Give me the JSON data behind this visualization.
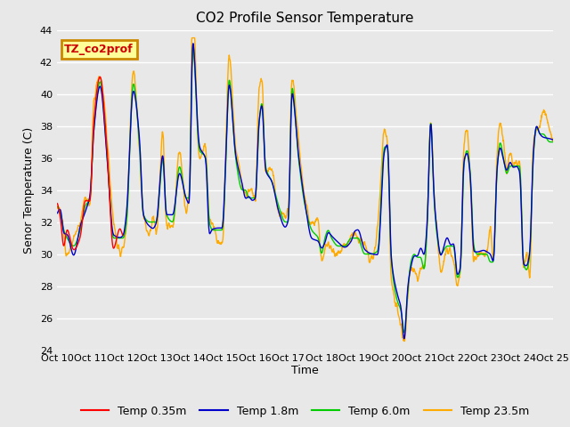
{
  "title": "CO2 Profile Sensor Temperature",
  "ylabel": "Senor Temperature (C)",
  "xlabel": "Time",
  "ylim": [
    24,
    44
  ],
  "bg_color": "#e8e8e8",
  "grid_color": "#ffffff",
  "annotation_text": "TZ_co2prof",
  "annotation_bg": "#ffff99",
  "annotation_border": "#cc8800",
  "annotation_text_color": "#cc0000",
  "tick_labels": [
    "Oct 10",
    "Oct 11",
    "Oct 12",
    "Oct 13",
    "Oct 14",
    "Oct 15",
    "Oct 16",
    "Oct 17",
    "Oct 18",
    "Oct 19",
    "Oct 20",
    "Oct 21",
    "Oct 22",
    "Oct 23",
    "Oct 24",
    "Oct 25"
  ],
  "colors": {
    "red": "#ff0000",
    "blue": "#0000cc",
    "green": "#00cc00",
    "orange": "#ffaa00"
  },
  "legend_labels": [
    "Temp 0.35m",
    "Temp 1.8m",
    "Temp 6.0m",
    "Temp 23.5m"
  ]
}
